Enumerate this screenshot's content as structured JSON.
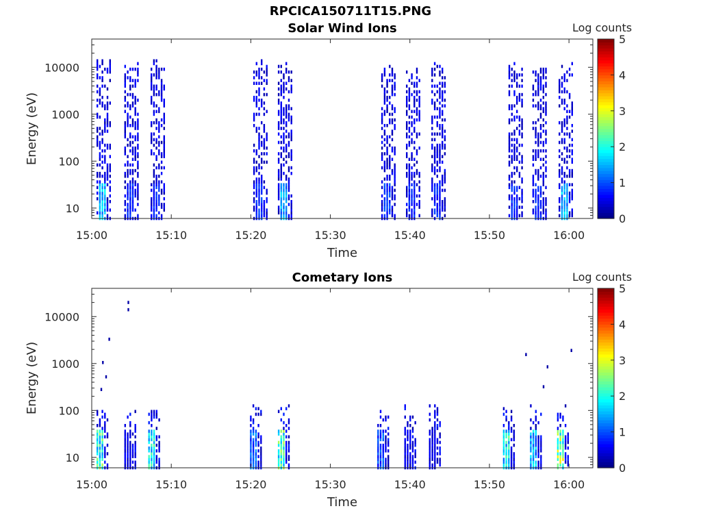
{
  "figure_title": "RPCICA150711T15.PNG",
  "chart_data": [
    {
      "type": "heatmap",
      "title": "Solar Wind Ions",
      "xlabel": "Time",
      "ylabel": "Energy (eV)",
      "x_ticks": [
        "15:00",
        "15:10",
        "15:20",
        "15:30",
        "15:40",
        "15:50",
        "16:00"
      ],
      "x_range_minutes": [
        0,
        63
      ],
      "y_scale": "log",
      "y_ticks": [
        10,
        100,
        1000,
        10000
      ],
      "y_range": [
        6,
        40000
      ],
      "colorbar": {
        "label": "Log counts",
        "ticks": [
          0,
          1,
          2,
          3,
          4,
          5
        ],
        "range": [
          0,
          5
        ],
        "colormap": "jet"
      },
      "bursts": [
        {
          "t": 1.5,
          "e_max": 15000,
          "peak": 1.8
        },
        {
          "t": 5.0,
          "e_max": 12000,
          "peak": 0.9
        },
        {
          "t": 8.3,
          "e_max": 14000,
          "peak": 0.9
        },
        {
          "t": 21.2,
          "e_max": 14000,
          "peak": 1.0
        },
        {
          "t": 24.3,
          "e_max": 12000,
          "peak": 1.6
        },
        {
          "t": 37.3,
          "e_max": 13000,
          "peak": 1.0
        },
        {
          "t": 40.4,
          "e_max": 11000,
          "peak": 0.9
        },
        {
          "t": 43.6,
          "e_max": 12000,
          "peak": 0.9
        },
        {
          "t": 53.3,
          "e_max": 14000,
          "peak": 0.9
        },
        {
          "t": 56.3,
          "e_max": 12000,
          "peak": 0.9
        },
        {
          "t": 59.6,
          "e_max": 13000,
          "peak": 1.7
        }
      ]
    },
    {
      "type": "heatmap",
      "title": "Cometary Ions",
      "xlabel": "Time",
      "ylabel": "Energy (eV)",
      "x_ticks": [
        "15:00",
        "15:10",
        "15:20",
        "15:30",
        "15:40",
        "15:50",
        "16:00"
      ],
      "x_range_minutes": [
        0,
        63
      ],
      "y_scale": "log",
      "y_ticks": [
        10,
        100,
        1000,
        10000
      ],
      "y_range": [
        6,
        40000
      ],
      "colorbar": {
        "label": "Log counts",
        "ticks": [
          0,
          1,
          2,
          3,
          4,
          5
        ],
        "range": [
          0,
          5
        ],
        "colormap": "jet"
      },
      "bursts": [
        {
          "t": 1.5,
          "e_max": 120,
          "peak": 2.5
        },
        {
          "t": 5.0,
          "e_max": 100,
          "peak": 0.6
        },
        {
          "t": 8.0,
          "e_max": 100,
          "peak": 2.2
        },
        {
          "t": 20.8,
          "e_max": 140,
          "peak": 1.3
        },
        {
          "t": 24.3,
          "e_max": 180,
          "peak": 2.6
        },
        {
          "t": 36.8,
          "e_max": 110,
          "peak": 1.2
        },
        {
          "t": 40.2,
          "e_max": 120,
          "peak": 0.6
        },
        {
          "t": 43.3,
          "e_max": 120,
          "peak": 0.6
        },
        {
          "t": 52.6,
          "e_max": 130,
          "peak": 2.3
        },
        {
          "t": 56.0,
          "e_max": 120,
          "peak": 1.8
        },
        {
          "t": 59.4,
          "e_max": 130,
          "peak": 3.0
        }
      ],
      "isolated_points": [
        {
          "t": 4.5,
          "e": 20000
        },
        {
          "t": 4.5,
          "e": 14000
        },
        {
          "t": 2.1,
          "e": 3300
        },
        {
          "t": 1.3,
          "e": 1050
        },
        {
          "t": 1.7,
          "e": 520
        },
        {
          "t": 1.1,
          "e": 280
        },
        {
          "t": 54.5,
          "e": 1550
        },
        {
          "t": 57.2,
          "e": 850
        },
        {
          "t": 60.2,
          "e": 1900
        },
        {
          "t": 56.7,
          "e": 320
        }
      ]
    }
  ]
}
